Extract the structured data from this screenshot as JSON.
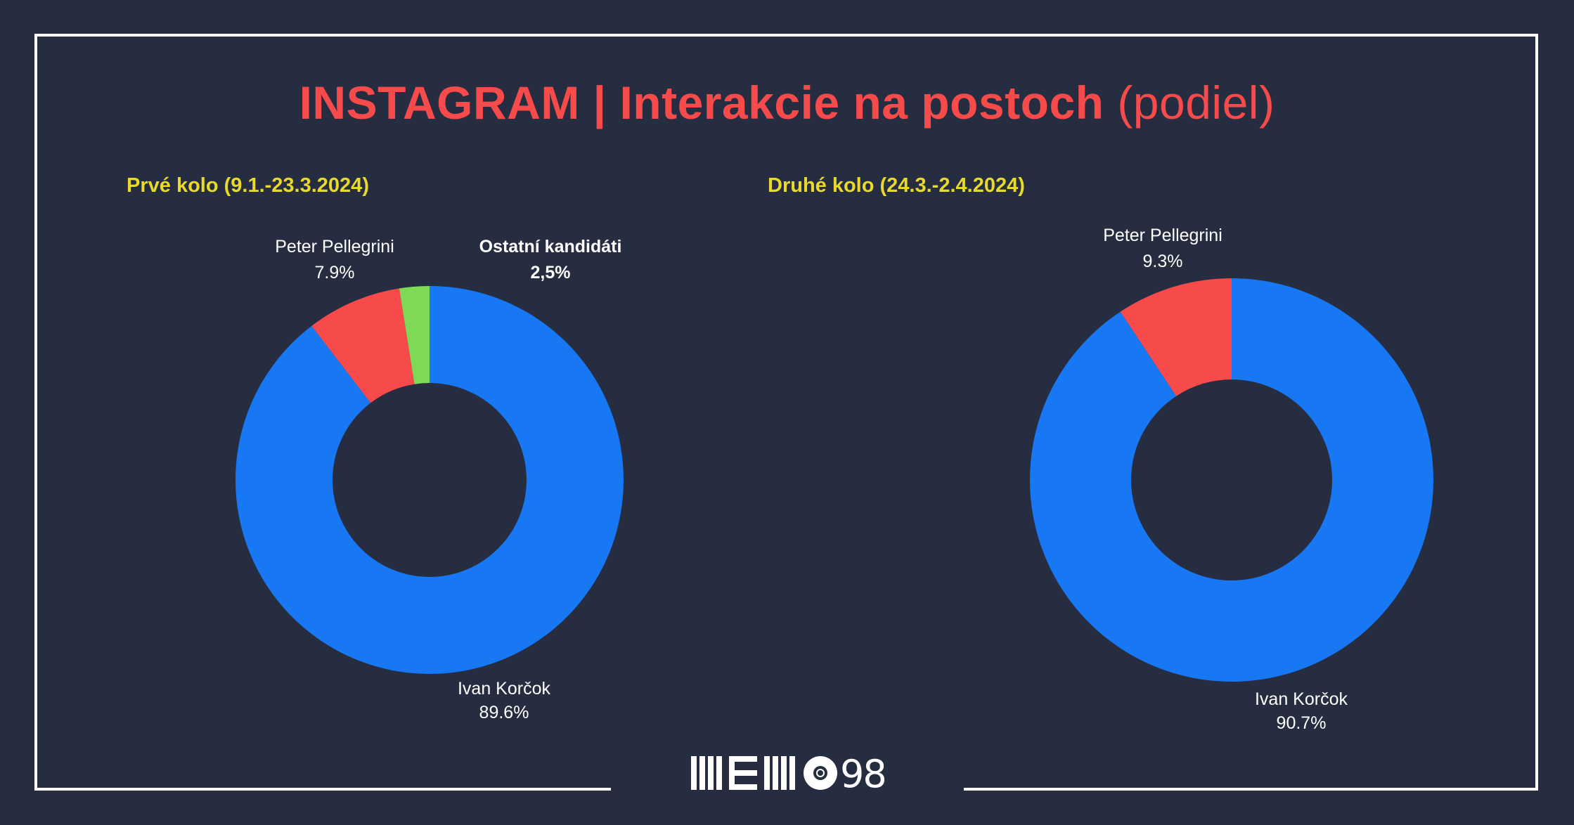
{
  "title": {
    "main": "INSTAGRAM | Interakcie na postoch",
    "suffix": "(podiel)"
  },
  "colors": {
    "background": "#262d40",
    "title": "#f74a4b",
    "subtitle": "#e8d92b",
    "korcok": "#1877f2",
    "pellegrini": "#f74a4b",
    "others": "#7ed957"
  },
  "logo": {
    "letters": "MEMO",
    "number": "98"
  },
  "chart_data": [
    {
      "type": "pie",
      "donut": true,
      "title": "Prvé kolo (9.1.-23.3.2024)",
      "slices": [
        {
          "name": "Ivan Korčok",
          "value": 89.6,
          "label": "89.6%",
          "color": "#1877f2"
        },
        {
          "name": "Peter Pellegrini",
          "value": 7.9,
          "label": "7.9%",
          "color": "#f74a4b"
        },
        {
          "name": "Ostatní kandidáti",
          "value": 2.5,
          "label": "2,5%",
          "color": "#7ed957"
        }
      ]
    },
    {
      "type": "pie",
      "donut": true,
      "title": "Druhé kolo (24.3.-2.4.2024)",
      "slices": [
        {
          "name": "Ivan Korčok",
          "value": 90.7,
          "label": "90.7%",
          "color": "#1877f2"
        },
        {
          "name": "Peter Pellegrini",
          "value": 9.3,
          "label": "9.3%",
          "color": "#f74a4b"
        }
      ]
    }
  ]
}
